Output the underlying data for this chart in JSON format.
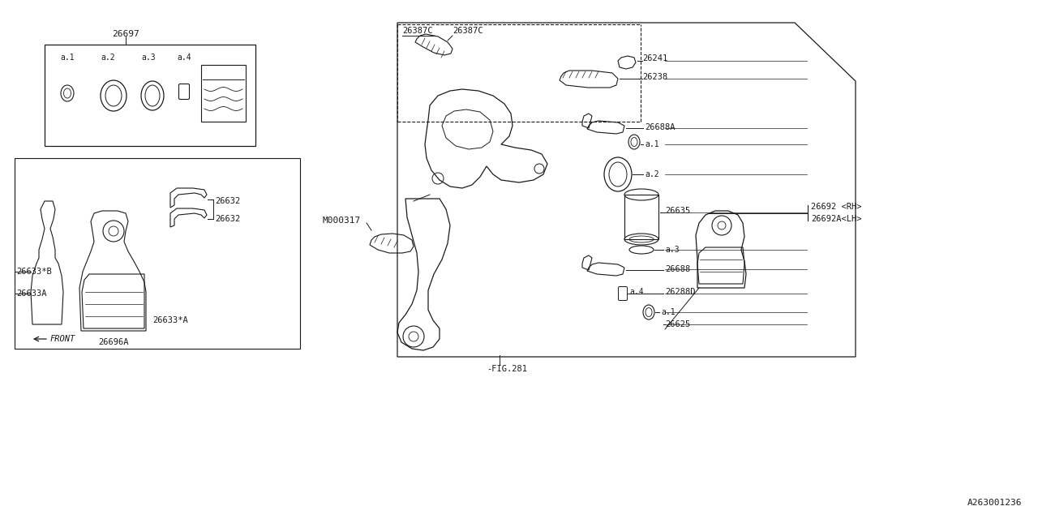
{
  "bg_color": "#ffffff",
  "line_color": "#1a1a1a",
  "diagram_id": "A263001236",
  "parts": {
    "kit_box_label": "26697",
    "pad_label1": "26633*B",
    "pad_label2": "26633A",
    "pad_label3": "26633*A",
    "pad_set_label": "26696A",
    "clip_label1": "26632",
    "clip_label2": "26632",
    "front_label": "FRONT",
    "bolt_label": "26387C",
    "pin1_label": "26241",
    "pin2_label": "26238",
    "boot_label": "26688A",
    "caliper_r": "26692 <RH>",
    "caliper_l": "26692A<LH>",
    "piston_label": "26635",
    "bolt2_label": "26688",
    "dust_boot_label": "26288D",
    "carrier_label": "26625",
    "mount_bolt": "M000317",
    "fig_label": "-FIG.281"
  }
}
